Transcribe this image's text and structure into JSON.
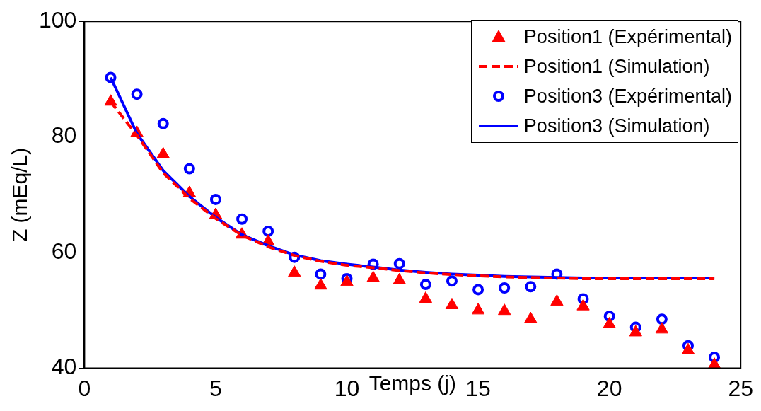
{
  "chart_data": {
    "type": "scatter",
    "xlabel": "Temps (j)",
    "ylabel": "Z (mEq/L)",
    "xlim": [
      0,
      25
    ],
    "xticks": [
      0,
      5,
      10,
      15,
      20,
      25
    ],
    "ylim": [
      40,
      100
    ],
    "yticks": [
      40,
      60,
      80,
      100
    ],
    "grid": false,
    "legend": "top right",
    "x": [
      1,
      2,
      3,
      4,
      5,
      6,
      7,
      8,
      9,
      10,
      11,
      12,
      13,
      14,
      15,
      16,
      17,
      18,
      19,
      20,
      21,
      22,
      23,
      24
    ],
    "series": [
      {
        "name": "Position1 (Expérimental)",
        "marker": "triangle",
        "color": "#ff0000",
        "values": [
          86.1,
          80.7,
          77.0,
          70.3,
          66.5,
          63.1,
          61.9,
          56.5,
          54.3,
          54.9,
          55.6,
          55.2,
          52.0,
          50.9,
          50.0,
          49.9,
          48.5,
          51.5,
          50.7,
          47.6,
          46.2,
          46.7,
          43.1,
          40.6
        ]
      },
      {
        "name": "Position1 (Simulation)",
        "type": "line",
        "marker": "none",
        "line_style": "dashed",
        "color": "#ff0000",
        "values": [
          86.1,
          80.3,
          73.8,
          69.4,
          65.9,
          63.0,
          61.0,
          59.5,
          58.5,
          57.8,
          57.4,
          56.9,
          56.5,
          56.2,
          56.0,
          55.8,
          55.7,
          55.6,
          55.5,
          55.5,
          55.5,
          55.5,
          55.5,
          55.5
        ]
      },
      {
        "name": "Position3 (Expérimental)",
        "marker": "circle",
        "color": "#0000ff",
        "values": [
          90.3,
          87.4,
          82.3,
          74.5,
          69.2,
          65.8,
          63.7,
          59.2,
          56.3,
          55.5,
          58.0,
          58.1,
          54.5,
          55.1,
          53.6,
          53.9,
          54.1,
          56.3,
          52.0,
          49.0,
          47.1,
          48.5,
          43.9,
          41.9
        ]
      },
      {
        "name": "Position3 (Simulation)",
        "type": "line",
        "marker": "none",
        "line_style": "solid",
        "color": "#0000ff",
        "values": [
          90.3,
          80.6,
          74.2,
          69.7,
          66.1,
          63.1,
          61.2,
          59.6,
          58.6,
          58.0,
          57.5,
          57.0,
          56.6,
          56.3,
          56.1,
          55.9,
          55.8,
          55.7,
          55.6,
          55.6,
          55.6,
          55.6,
          55.6,
          55.6
        ]
      }
    ]
  }
}
